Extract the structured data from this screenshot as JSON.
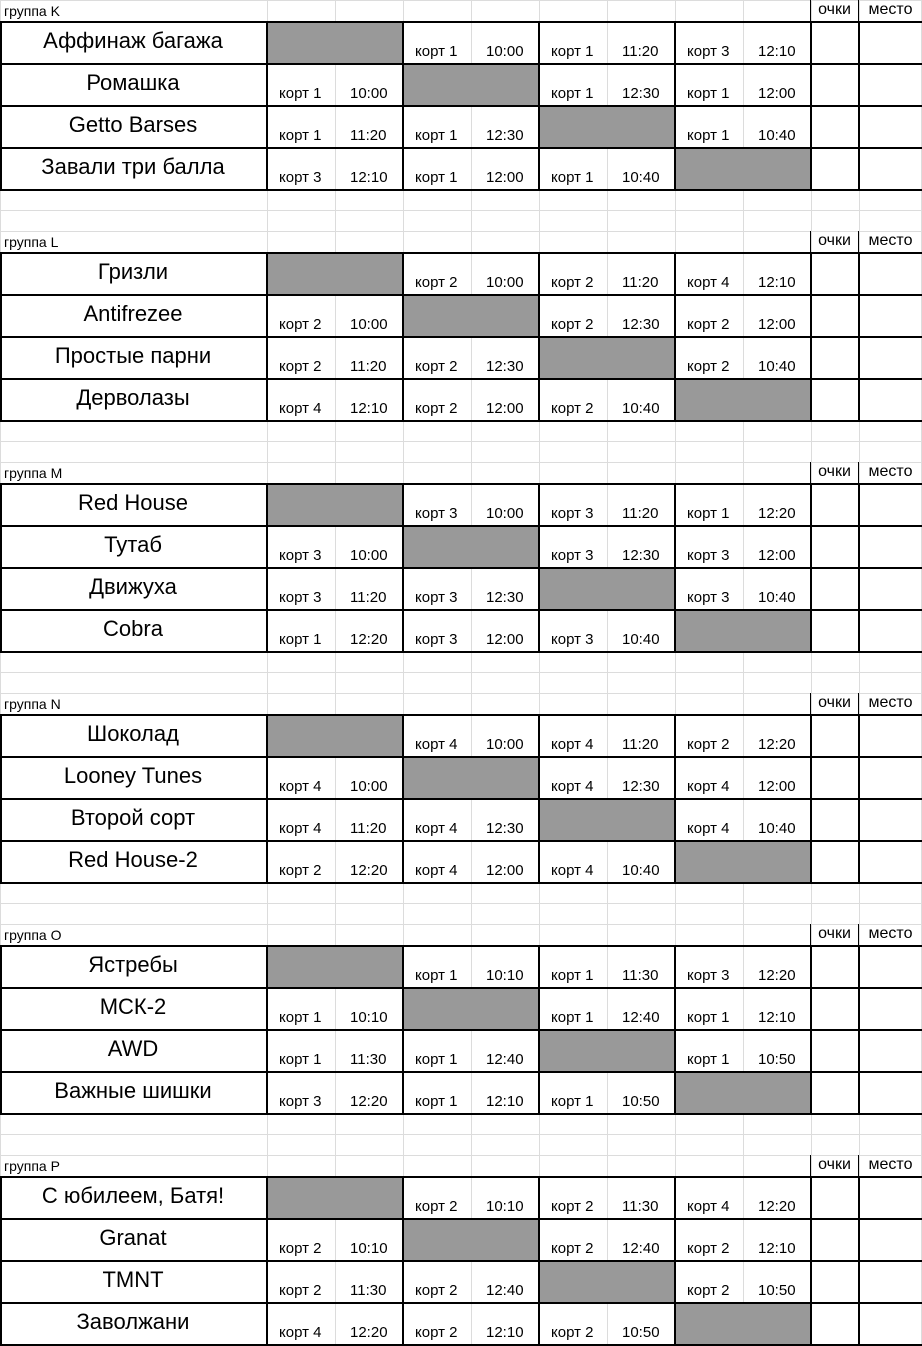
{
  "header_labels": {
    "points": "очки",
    "place": "место"
  },
  "groups": [
    {
      "title": "группа K",
      "teams": [
        {
          "name": "Аффинаж багажа",
          "matches": [
            null,
            {
              "court": "корт 1",
              "time": "10:00"
            },
            {
              "court": "корт 1",
              "time": "11:20"
            },
            {
              "court": "корт 3",
              "time": "12:10"
            }
          ]
        },
        {
          "name": "Ромашка",
          "matches": [
            {
              "court": "корт 1",
              "time": "10:00"
            },
            null,
            {
              "court": "корт 1",
              "time": "12:30"
            },
            {
              "court": "корт 1",
              "time": "12:00"
            }
          ]
        },
        {
          "name": "Getto Barses",
          "matches": [
            {
              "court": "корт 1",
              "time": "11:20"
            },
            {
              "court": "корт 1",
              "time": "12:30"
            },
            null,
            {
              "court": "корт 1",
              "time": "10:40"
            }
          ]
        },
        {
          "name": "Завали три балла",
          "matches": [
            {
              "court": "корт 3",
              "time": "12:10"
            },
            {
              "court": "корт 1",
              "time": "12:00"
            },
            {
              "court": "корт 1",
              "time": "10:40"
            },
            null
          ]
        }
      ]
    },
    {
      "title": "группа L",
      "teams": [
        {
          "name": "Гризли",
          "matches": [
            null,
            {
              "court": "корт 2",
              "time": "10:00"
            },
            {
              "court": "корт 2",
              "time": "11:20"
            },
            {
              "court": "корт 4",
              "time": "12:10"
            }
          ]
        },
        {
          "name": "Antifrezee",
          "matches": [
            {
              "court": "корт 2",
              "time": "10:00"
            },
            null,
            {
              "court": "корт 2",
              "time": "12:30"
            },
            {
              "court": "корт 2",
              "time": "12:00"
            }
          ]
        },
        {
          "name": "Простые парни",
          "matches": [
            {
              "court": "корт 2",
              "time": "11:20"
            },
            {
              "court": "корт 2",
              "time": "12:30"
            },
            null,
            {
              "court": "корт 2",
              "time": "10:40"
            }
          ]
        },
        {
          "name": "Дерволазы",
          "matches": [
            {
              "court": "корт 4",
              "time": "12:10"
            },
            {
              "court": "корт 2",
              "time": "12:00"
            },
            {
              "court": "корт 2",
              "time": "10:40"
            },
            null
          ]
        }
      ]
    },
    {
      "title": "группа M",
      "teams": [
        {
          "name": "Red House",
          "matches": [
            null,
            {
              "court": "корт 3",
              "time": "10:00"
            },
            {
              "court": "корт 3",
              "time": "11:20"
            },
            {
              "court": "корт 1",
              "time": "12:20"
            }
          ]
        },
        {
          "name": "Тутаб",
          "matches": [
            {
              "court": "корт 3",
              "time": "10:00"
            },
            null,
            {
              "court": "корт 3",
              "time": "12:30"
            },
            {
              "court": "корт 3",
              "time": "12:00"
            }
          ]
        },
        {
          "name": "Движуха",
          "matches": [
            {
              "court": "корт 3",
              "time": "11:20"
            },
            {
              "court": "корт 3",
              "time": "12:30"
            },
            null,
            {
              "court": "корт 3",
              "time": "10:40"
            }
          ]
        },
        {
          "name": "Cobra",
          "matches": [
            {
              "court": "корт 1",
              "time": "12:20"
            },
            {
              "court": "корт 3",
              "time": "12:00"
            },
            {
              "court": "корт 3",
              "time": "10:40"
            },
            null
          ]
        }
      ]
    },
    {
      "title": "группа N",
      "teams": [
        {
          "name": "Шоколад",
          "matches": [
            null,
            {
              "court": "корт 4",
              "time": "10:00"
            },
            {
              "court": "корт 4",
              "time": "11:20"
            },
            {
              "court": "корт 2",
              "time": "12:20"
            }
          ]
        },
        {
          "name": "Looney Tunes",
          "matches": [
            {
              "court": "корт 4",
              "time": "10:00"
            },
            null,
            {
              "court": "корт 4",
              "time": "12:30"
            },
            {
              "court": "корт 4",
              "time": "12:00"
            }
          ]
        },
        {
          "name": "Второй сорт",
          "matches": [
            {
              "court": "корт 4",
              "time": "11:20"
            },
            {
              "court": "корт 4",
              "time": "12:30"
            },
            null,
            {
              "court": "корт 4",
              "time": "10:40"
            }
          ]
        },
        {
          "name": "Red House-2",
          "matches": [
            {
              "court": "корт 2",
              "time": "12:20"
            },
            {
              "court": "корт 4",
              "time": "12:00"
            },
            {
              "court": "корт 4",
              "time": "10:40"
            },
            null
          ]
        }
      ]
    },
    {
      "title": "группа O",
      "teams": [
        {
          "name": "Ястребы",
          "matches": [
            null,
            {
              "court": "корт 1",
              "time": "10:10"
            },
            {
              "court": "корт 1",
              "time": "11:30"
            },
            {
              "court": "корт 3",
              "time": "12:20"
            }
          ]
        },
        {
          "name": "МСК-2",
          "matches": [
            {
              "court": "корт 1",
              "time": "10:10"
            },
            null,
            {
              "court": "корт 1",
              "time": "12:40"
            },
            {
              "court": "корт 1",
              "time": "12:10"
            }
          ]
        },
        {
          "name": "AWD",
          "matches": [
            {
              "court": "корт 1",
              "time": "11:30"
            },
            {
              "court": "корт 1",
              "time": "12:40"
            },
            null,
            {
              "court": "корт 1",
              "time": "10:50"
            }
          ]
        },
        {
          "name": "Важные шишки",
          "matches": [
            {
              "court": "корт 3",
              "time": "12:20"
            },
            {
              "court": "корт 1",
              "time": "12:10"
            },
            {
              "court": "корт 1",
              "time": "10:50"
            },
            null
          ]
        }
      ]
    },
    {
      "title": "группа P",
      "teams": [
        {
          "name": "С юбилеем, Батя!",
          "matches": [
            null,
            {
              "court": "корт 2",
              "time": "10:10"
            },
            {
              "court": "корт 2",
              "time": "11:30"
            },
            {
              "court": "корт 4",
              "time": "12:20"
            }
          ]
        },
        {
          "name": "Granat",
          "matches": [
            {
              "court": "корт 2",
              "time": "10:10"
            },
            null,
            {
              "court": "корт 2",
              "time": "12:40"
            },
            {
              "court": "корт 2",
              "time": "12:10"
            }
          ]
        },
        {
          "name": "TMNT",
          "matches": [
            {
              "court": "корт 2",
              "time": "11:30"
            },
            {
              "court": "корт 2",
              "time": "12:40"
            },
            null,
            {
              "court": "корт 2",
              "time": "10:50"
            }
          ]
        },
        {
          "name": "Заволжани",
          "matches": [
            {
              "court": "корт 4",
              "time": "12:20"
            },
            {
              "court": "корт 2",
              "time": "12:10"
            },
            {
              "court": "корт 2",
              "time": "10:50"
            },
            null
          ]
        }
      ]
    }
  ]
}
